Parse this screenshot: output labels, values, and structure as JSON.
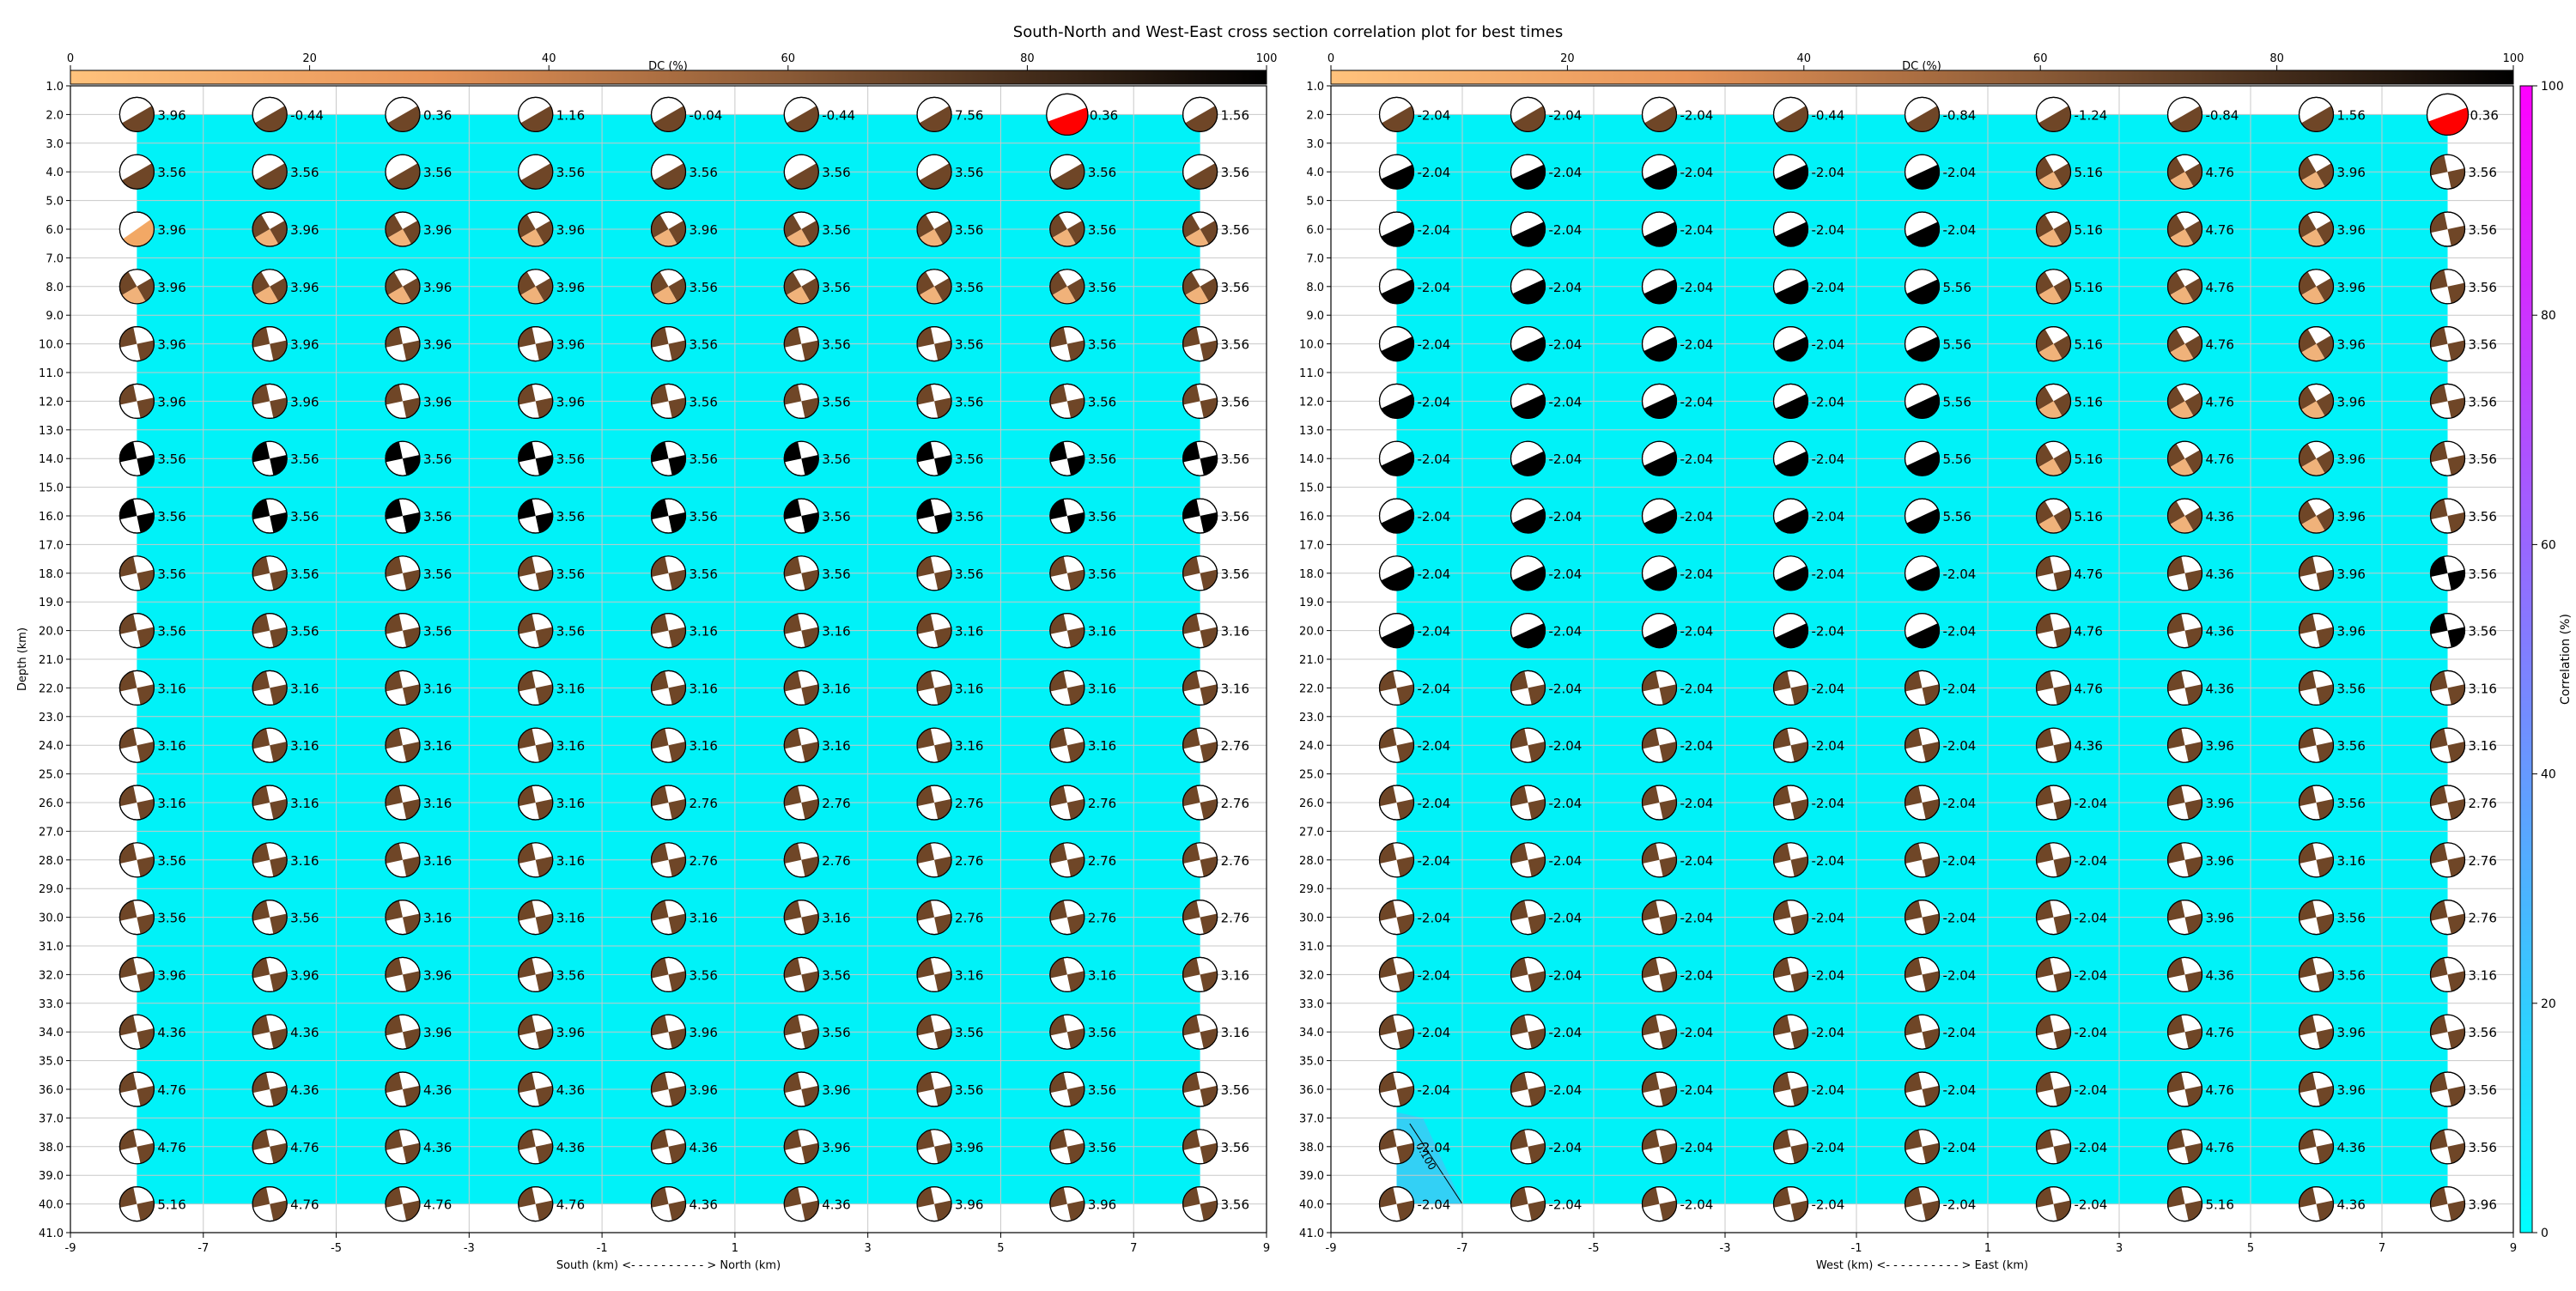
{
  "title": "South-North and West-East cross section correlation plot for best times",
  "dc_colorbar": {
    "label": "DC (%)",
    "ticks": [
      "0",
      "20",
      "40",
      "60",
      "80",
      "100"
    ]
  },
  "corr_colorbar": {
    "label": "Correlation (%)",
    "ticks": [
      "0",
      "20",
      "40",
      "60",
      "80",
      "100"
    ]
  },
  "colors": {
    "grid_fill": "#00f2f8",
    "dc_low": "#ffc27c",
    "dc_high": "#000000",
    "corr_low": "#00ffff",
    "corr_high": "#ff00ff",
    "best": "#ff0000"
  },
  "chart_data": [
    {
      "type": "scatter",
      "xlabel": "South (km) <- - - - - - - - - - > North (km)",
      "ylabel": "Depth (km)",
      "xlim": [
        -9,
        9
      ],
      "ylim": [
        41,
        1
      ],
      "xticks": [
        "-9",
        "-7",
        "-5",
        "-3",
        "-1",
        "1",
        "3",
        "5",
        "7",
        "9"
      ],
      "yticks": [
        "1.0",
        "2.0",
        "3.0",
        "4.0",
        "5.0",
        "6.0",
        "7.0",
        "8.0",
        "9.0",
        "10.0",
        "11.0",
        "12.0",
        "13.0",
        "14.0",
        "15.0",
        "16.0",
        "17.0",
        "18.0",
        "19.0",
        "20.0",
        "21.0",
        "22.0",
        "23.0",
        "24.0",
        "25.0",
        "26.0",
        "27.0",
        "28.0",
        "29.0",
        "30.0",
        "31.0",
        "32.0",
        "33.0",
        "34.0",
        "35.0",
        "36.0",
        "37.0",
        "38.0",
        "39.0",
        "40.0",
        "41.0"
      ],
      "x": [
        -8,
        -6,
        -4,
        -2,
        0,
        2,
        4,
        6,
        8
      ],
      "depths": [
        2,
        4,
        6,
        8,
        10,
        12,
        14,
        16,
        18,
        20,
        22,
        24,
        26,
        28,
        30,
        32,
        34,
        36,
        38,
        40
      ],
      "best": {
        "x": 6,
        "depth": 2
      },
      "time_shift_labels": [
        [
          "3.96",
          "-0.44",
          "0.36",
          "1.16",
          "-0.04",
          "-0.44",
          "7.56",
          "0.36",
          "1.56"
        ],
        [
          "3.56",
          "3.56",
          "3.56",
          "3.56",
          "3.56",
          "3.56",
          "3.56",
          "3.56",
          "3.56"
        ],
        [
          "3.96",
          "3.96",
          "3.96",
          "3.96",
          "3.96",
          "3.56",
          "3.56",
          "3.56",
          "3.56"
        ],
        [
          "3.96",
          "3.96",
          "3.96",
          "3.96",
          "3.56",
          "3.56",
          "3.56",
          "3.56",
          "3.56"
        ],
        [
          "3.96",
          "3.96",
          "3.96",
          "3.96",
          "3.56",
          "3.56",
          "3.56",
          "3.56",
          "3.56"
        ],
        [
          "3.96",
          "3.96",
          "3.96",
          "3.96",
          "3.56",
          "3.56",
          "3.56",
          "3.56",
          "3.56"
        ],
        [
          "3.56",
          "3.56",
          "3.56",
          "3.56",
          "3.56",
          "3.56",
          "3.56",
          "3.56",
          "3.56"
        ],
        [
          "3.56",
          "3.56",
          "3.56",
          "3.56",
          "3.56",
          "3.56",
          "3.56",
          "3.56",
          "3.56"
        ],
        [
          "3.56",
          "3.56",
          "3.56",
          "3.56",
          "3.56",
          "3.56",
          "3.56",
          "3.56",
          "3.56"
        ],
        [
          "3.56",
          "3.56",
          "3.56",
          "3.56",
          "3.16",
          "3.16",
          "3.16",
          "3.16",
          "3.16"
        ],
        [
          "3.16",
          "3.16",
          "3.16",
          "3.16",
          "3.16",
          "3.16",
          "3.16",
          "3.16",
          "3.16"
        ],
        [
          "3.16",
          "3.16",
          "3.16",
          "3.16",
          "3.16",
          "3.16",
          "3.16",
          "3.16",
          "2.76"
        ],
        [
          "3.16",
          "3.16",
          "3.16",
          "3.16",
          "2.76",
          "2.76",
          "2.76",
          "2.76",
          "2.76"
        ],
        [
          "3.56",
          "3.16",
          "3.16",
          "3.16",
          "2.76",
          "2.76",
          "2.76",
          "2.76",
          "2.76"
        ],
        [
          "3.56",
          "3.56",
          "3.16",
          "3.16",
          "3.16",
          "3.16",
          "2.76",
          "2.76",
          "2.76"
        ],
        [
          "3.96",
          "3.96",
          "3.96",
          "3.56",
          "3.56",
          "3.56",
          "3.16",
          "3.16",
          "3.16"
        ],
        [
          "4.36",
          "4.36",
          "3.96",
          "3.96",
          "3.96",
          "3.56",
          "3.56",
          "3.56",
          "3.16"
        ],
        [
          "4.76",
          "4.36",
          "4.36",
          "4.36",
          "3.96",
          "3.96",
          "3.56",
          "3.56",
          "3.56"
        ],
        [
          "4.76",
          "4.76",
          "4.36",
          "4.36",
          "4.36",
          "3.96",
          "3.96",
          "3.56",
          "3.56"
        ],
        [
          "5.16",
          "4.76",
          "4.76",
          "4.76",
          "4.36",
          "4.36",
          "3.96",
          "3.96",
          "3.56"
        ]
      ]
    },
    {
      "type": "scatter",
      "xlabel": "West (km) <- - - - - - - - - - > East (km)",
      "ylabel": "",
      "xlim": [
        -9,
        9
      ],
      "ylim": [
        41,
        1
      ],
      "xticks": [
        "-9",
        "-7",
        "-5",
        "-3",
        "-1",
        "1",
        "3",
        "5",
        "7",
        "9"
      ],
      "yticks": [
        "1.0",
        "2.0",
        "3.0",
        "4.0",
        "5.0",
        "6.0",
        "7.0",
        "8.0",
        "9.0",
        "10.0",
        "11.0",
        "12.0",
        "13.0",
        "14.0",
        "15.0",
        "16.0",
        "17.0",
        "18.0",
        "19.0",
        "20.0",
        "21.0",
        "22.0",
        "23.0",
        "24.0",
        "25.0",
        "26.0",
        "27.0",
        "28.0",
        "29.0",
        "30.0",
        "31.0",
        "32.0",
        "33.0",
        "34.0",
        "35.0",
        "36.0",
        "37.0",
        "38.0",
        "39.0",
        "40.0",
        "41.0"
      ],
      "x": [
        -8,
        -6,
        -4,
        -2,
        0,
        2,
        4,
        6,
        8
      ],
      "depths": [
        2,
        4,
        6,
        8,
        10,
        12,
        14,
        16,
        18,
        20,
        22,
        24,
        26,
        28,
        30,
        32,
        34,
        36,
        38,
        40
      ],
      "best": {
        "x": 8,
        "depth": 2
      },
      "contour_label": "0.100",
      "time_shift_labels": [
        [
          "-2.04",
          "-2.04",
          "-2.04",
          "-0.44",
          "-0.84",
          "-1.24",
          "-0.84",
          "1.56",
          "0.36"
        ],
        [
          "-2.04",
          "-2.04",
          "-2.04",
          "-2.04",
          "-2.04",
          "5.16",
          "4.76",
          "3.96",
          "3.56"
        ],
        [
          "-2.04",
          "-2.04",
          "-2.04",
          "-2.04",
          "-2.04",
          "5.16",
          "4.76",
          "3.96",
          "3.56"
        ],
        [
          "-2.04",
          "-2.04",
          "-2.04",
          "-2.04",
          "5.56",
          "5.16",
          "4.76",
          "3.96",
          "3.56"
        ],
        [
          "-2.04",
          "-2.04",
          "-2.04",
          "-2.04",
          "5.56",
          "5.16",
          "4.76",
          "3.96",
          "3.56"
        ],
        [
          "-2.04",
          "-2.04",
          "-2.04",
          "-2.04",
          "5.56",
          "5.16",
          "4.76",
          "3.96",
          "3.56"
        ],
        [
          "-2.04",
          "-2.04",
          "-2.04",
          "-2.04",
          "5.56",
          "5.16",
          "4.76",
          "3.96",
          "3.56"
        ],
        [
          "-2.04",
          "-2.04",
          "-2.04",
          "-2.04",
          "5.56",
          "5.16",
          "4.36",
          "3.96",
          "3.56"
        ],
        [
          "-2.04",
          "-2.04",
          "-2.04",
          "-2.04",
          "-2.04",
          "4.76",
          "4.36",
          "3.96",
          "3.56"
        ],
        [
          "-2.04",
          "-2.04",
          "-2.04",
          "-2.04",
          "-2.04",
          "4.76",
          "4.36",
          "3.96",
          "3.56"
        ],
        [
          "-2.04",
          "-2.04",
          "-2.04",
          "-2.04",
          "-2.04",
          "4.76",
          "4.36",
          "3.56",
          "3.16"
        ],
        [
          "-2.04",
          "-2.04",
          "-2.04",
          "-2.04",
          "-2.04",
          "4.36",
          "3.96",
          "3.56",
          "3.16"
        ],
        [
          "-2.04",
          "-2.04",
          "-2.04",
          "-2.04",
          "-2.04",
          "-2.04",
          "3.96",
          "3.56",
          "2.76"
        ],
        [
          "-2.04",
          "-2.04",
          "-2.04",
          "-2.04",
          "-2.04",
          "-2.04",
          "3.96",
          "3.16",
          "2.76"
        ],
        [
          "-2.04",
          "-2.04",
          "-2.04",
          "-2.04",
          "-2.04",
          "-2.04",
          "3.96",
          "3.56",
          "2.76"
        ],
        [
          "-2.04",
          "-2.04",
          "-2.04",
          "-2.04",
          "-2.04",
          "-2.04",
          "4.36",
          "3.56",
          "3.16"
        ],
        [
          "-2.04",
          "-2.04",
          "-2.04",
          "-2.04",
          "-2.04",
          "-2.04",
          "4.76",
          "3.96",
          "3.56"
        ],
        [
          "-2.04",
          "-2.04",
          "-2.04",
          "-2.04",
          "-2.04",
          "-2.04",
          "4.76",
          "3.96",
          "3.56"
        ],
        [
          "-2.04",
          "-2.04",
          "-2.04",
          "-2.04",
          "-2.04",
          "-2.04",
          "4.76",
          "4.36",
          "3.56"
        ],
        [
          "-2.04",
          "-2.04",
          "-2.04",
          "-2.04",
          "-2.04",
          "-2.04",
          "5.16",
          "4.36",
          "3.96"
        ]
      ]
    }
  ]
}
